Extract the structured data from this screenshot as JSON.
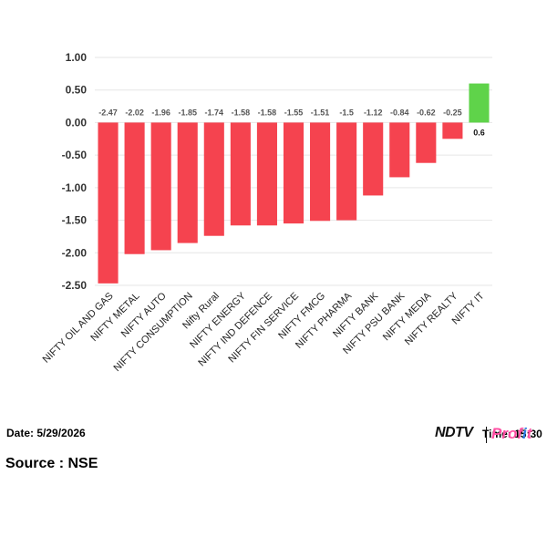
{
  "chart_data": {
    "type": "bar",
    "categories": [
      "NIFTY OIL AND GAS",
      "NIFTY METAL",
      "NIFTY AUTO",
      "NIFTY CONSUMPTION",
      "Nifty Rural",
      "NIFTY ENERGY",
      "NIFTY IND DEFENCE",
      "NIFTY FIN SERVICE",
      "NIFTY FMCG",
      "NIFTY PHARMA",
      "NIFTY BANK",
      "NIFTY PSU BANK",
      "NIFTY MEDIA",
      "NIFTY REALTY",
      "NIFTY IT"
    ],
    "values": [
      -2.47,
      -2.02,
      -1.96,
      -1.85,
      -1.74,
      -1.58,
      -1.58,
      -1.55,
      -1.51,
      -1.5,
      -1.12,
      -0.84,
      -0.62,
      -0.25,
      0.6
    ],
    "data_labels": [
      "-2.47",
      "-2.02",
      "-1.96",
      "-1.85",
      "-1.74",
      "-1.58",
      "-1.58",
      "-1.55",
      "-1.51",
      "-1.5",
      "-1.12",
      "-0.84",
      "-0.62",
      "-0.25",
      "0.6"
    ],
    "yticks": [
      "1.00",
      "0.50",
      "0.00",
      "-0.50",
      "-1.00",
      "-1.50",
      "-2.00",
      "-2.50"
    ],
    "ylim": [
      -2.5,
      1.0
    ],
    "grid": true,
    "colors": {
      "negative": "#f5434f",
      "positive": "#5fd34a"
    }
  },
  "footer": {
    "date": "Date: 5/29/2026",
    "time": "Time: 15:30",
    "source": "Source : NSE",
    "brand_ndtv": "NDTV",
    "brand_profit_a": "Prof",
    "brand_profit_i": "i",
    "brand_profit_t": "t"
  }
}
